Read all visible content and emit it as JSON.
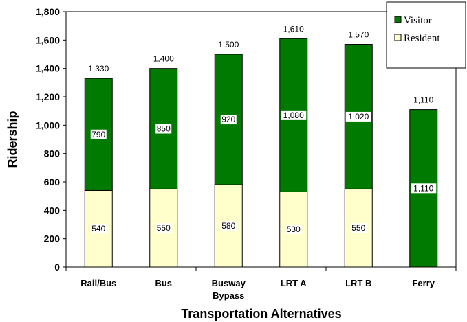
{
  "chart_data": {
    "type": "bar",
    "stacked": true,
    "categories": [
      [
        "Rail/Bus"
      ],
      [
        "Bus"
      ],
      [
        "Busway",
        "Bypass"
      ],
      [
        "LRT A"
      ],
      [
        "LRT B"
      ],
      [
        "Ferry"
      ]
    ],
    "series": [
      {
        "name": "Resident",
        "color": "#ffffcc",
        "values": [
          540,
          550,
          580,
          530,
          550,
          0
        ],
        "labels": [
          "540",
          "550",
          "580",
          "530",
          "550",
          ""
        ]
      },
      {
        "name": "Visitor",
        "color": "#007a00",
        "values": [
          790,
          850,
          920,
          1080,
          1020,
          1110
        ],
        "labels": [
          "790",
          "850",
          "920",
          "1,080",
          "1,020",
          "1,110"
        ]
      }
    ],
    "totals": [
      1330,
      1400,
      1500,
      1610,
      1570,
      1110
    ],
    "total_labels": [
      "1,330",
      "1,400",
      "1,500",
      "1,610",
      "1,570",
      "1,110"
    ],
    "xlabel": "Transportation Alternatives",
    "ylabel": "Ridership",
    "ylim": [
      0,
      1800
    ],
    "yticks": [
      0,
      200,
      400,
      600,
      800,
      1000,
      1200,
      1400,
      1600,
      1800
    ],
    "ytick_labels": [
      "0",
      "200",
      "400",
      "600",
      "800",
      "1,000",
      "1,200",
      "1,400",
      "1,600",
      "1,800"
    ],
    "grid": false,
    "legend": {
      "placement": "top-right",
      "order": [
        "Visitor",
        "Resident"
      ]
    }
  }
}
